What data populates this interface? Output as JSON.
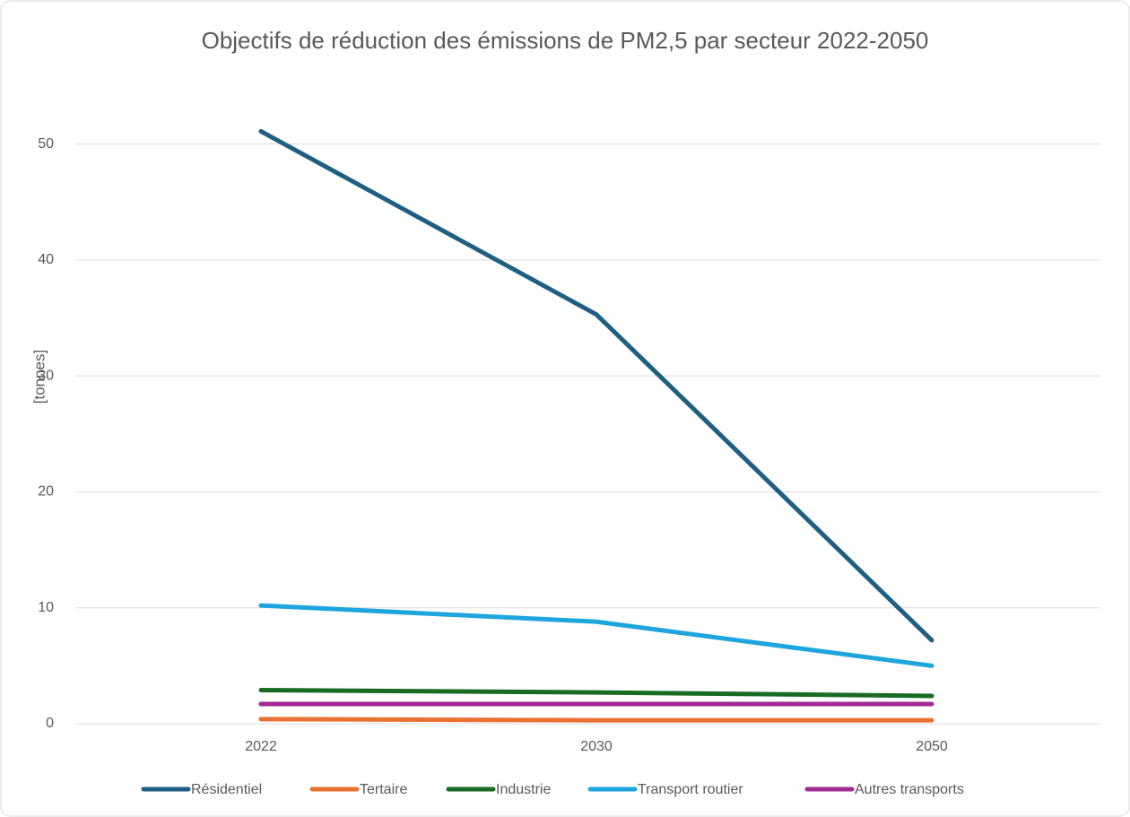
{
  "chart_data": {
    "type": "line",
    "title": "Objectifs de réduction des émissions de PM2,5 par secteur 2022-2050",
    "y_label": "[tonnes]",
    "categories": [
      "2022",
      "2030",
      "2050"
    ],
    "series": [
      {
        "name": "Résidentiel",
        "color": "#1f5f82",
        "values": [
          51.1,
          35.3,
          7.2
        ]
      },
      {
        "name": "Tertaire",
        "color": "#e97132",
        "values": [
          0.4,
          0.3,
          0.3
        ]
      },
      {
        "name": "Industrie",
        "color": "#196b24",
        "values": [
          2.9,
          2.7,
          2.4
        ]
      },
      {
        "name": "Transport routier",
        "color": "#1ea5dd",
        "values": [
          10.2,
          8.8,
          5.0
        ]
      },
      {
        "name": "Autres transports",
        "color": "#a02b93",
        "values": [
          1.7,
          1.7,
          1.7
        ]
      }
    ],
    "ylim": [
      0,
      55
    ],
    "yticks": [
      0,
      10,
      20,
      30,
      40,
      50
    ],
    "grid": true,
    "legend": "bottom"
  }
}
